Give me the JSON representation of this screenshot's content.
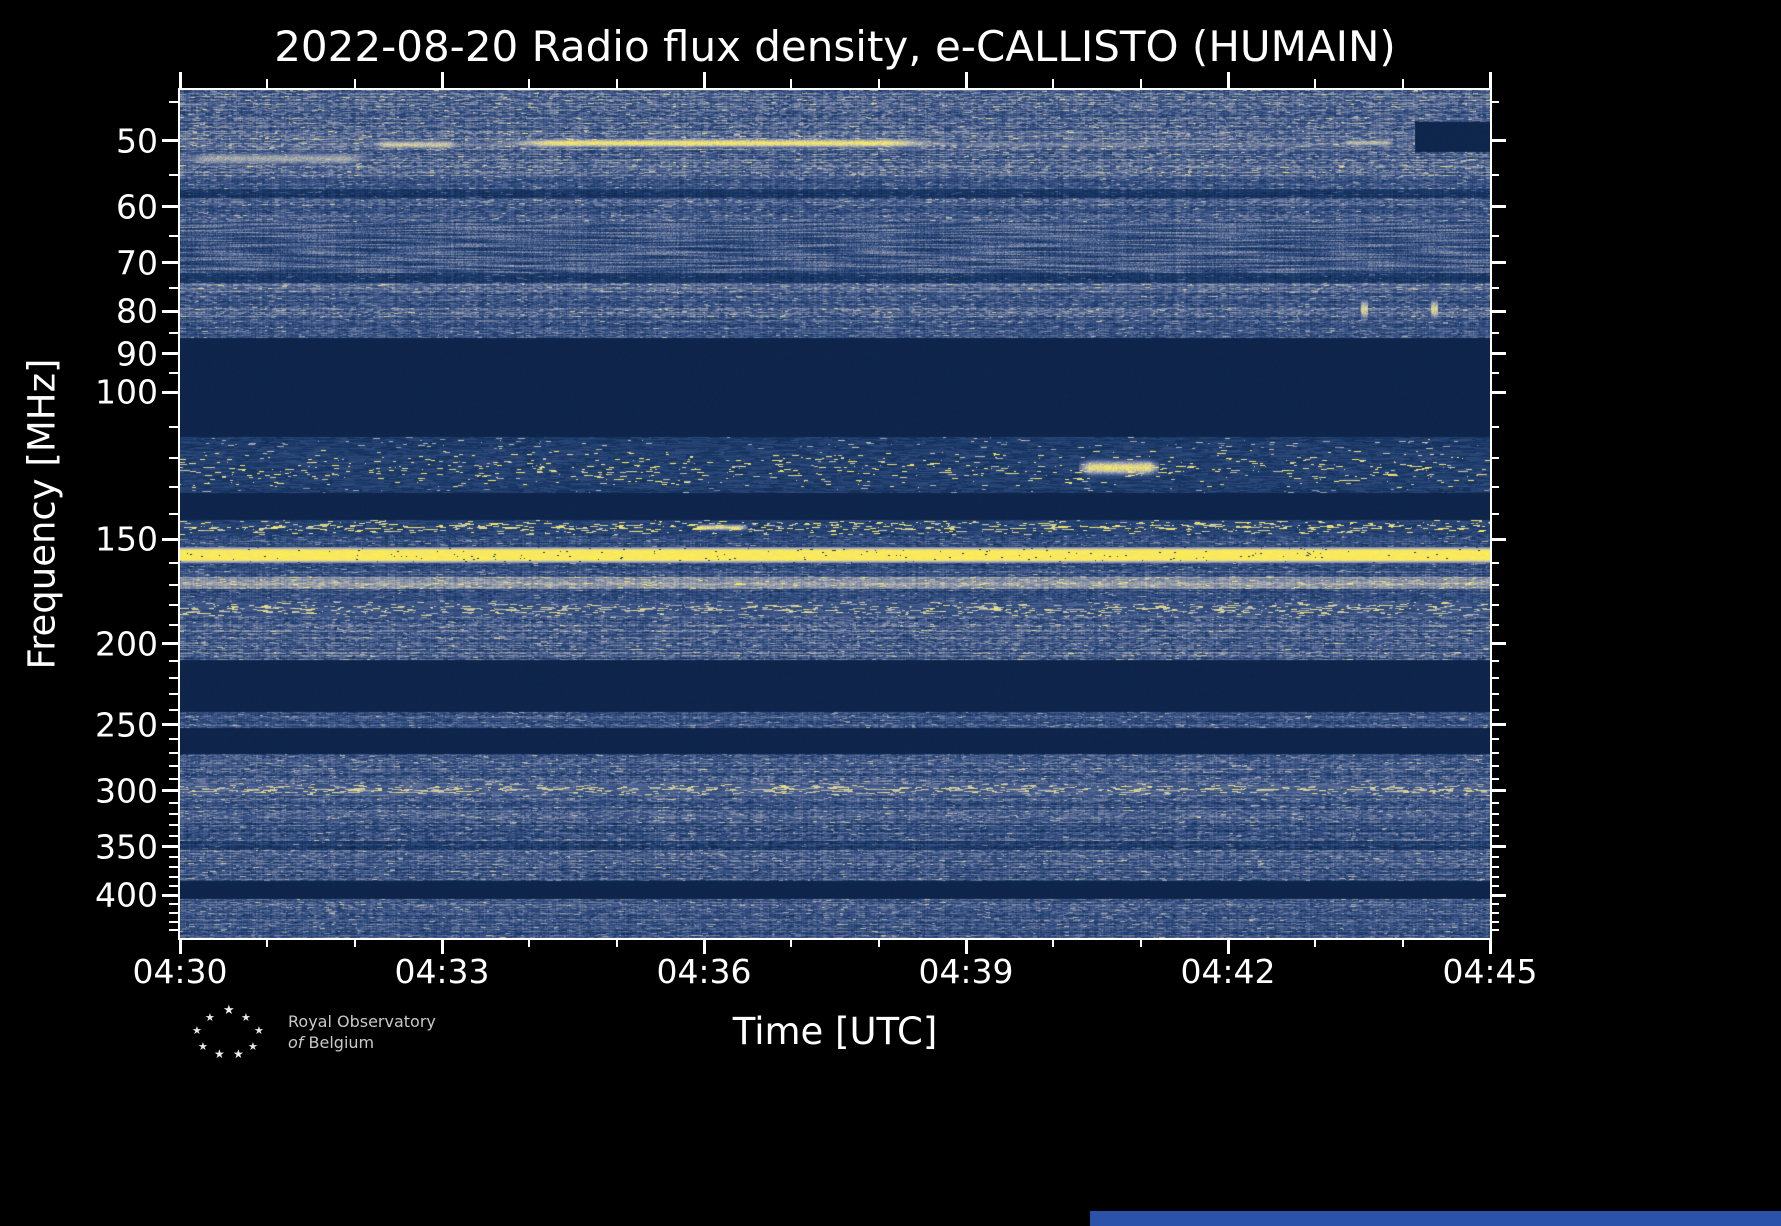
{
  "title": "2022-08-20 Radio flux density, e-CALLISTO (HUMAIN)",
  "axes": {
    "xlabel": "Time [UTC]",
    "ylabel": "Frequency [MHz]",
    "x_tick_labels": [
      "04:30",
      "04:33",
      "04:36",
      "04:39",
      "04:42",
      "04:45"
    ],
    "y_tick_labels": [
      "50",
      "60",
      "70",
      "80",
      "90",
      "100",
      "150",
      "200",
      "250",
      "300",
      "350",
      "400"
    ]
  },
  "branding": {
    "line1": "Royal Observatory",
    "line2_prefix": "of",
    "line2_rest": "Belgium"
  },
  "colors": {
    "background": "#000000",
    "axis": "#ffffff",
    "text": "#ffffff",
    "branding_text": "#c9c9c9",
    "bottom_strip": "#2a52aa"
  },
  "chart_data": {
    "type": "heatmap",
    "title": "2022-08-20 Radio flux density, e-CALLISTO (HUMAIN)",
    "xlabel": "Time [UTC]",
    "ylabel": "Frequency [MHz]",
    "x_ticks_minutes": [
      270,
      273,
      276,
      279,
      282,
      285
    ],
    "x_minor_ticks_minutes": [
      271,
      272,
      274,
      275,
      277,
      278,
      280,
      281,
      283,
      284
    ],
    "y_ticks_mhz": [
      50,
      60,
      70,
      80,
      90,
      100,
      150,
      200,
      250,
      300,
      350,
      400
    ],
    "y_minor_ticks_mhz": [
      45,
      55,
      65,
      75,
      85,
      95,
      110,
      120,
      130,
      140,
      160,
      170,
      180,
      190,
      210,
      220,
      230,
      240,
      260,
      270,
      280,
      290,
      310,
      320,
      330,
      340,
      360,
      370,
      380,
      390,
      410,
      420,
      430,
      440
    ],
    "x_range_minutes": [
      270,
      285
    ],
    "time_start_utc": "04:30",
    "time_end_utc": "04:45",
    "freq_range_mhz": [
      43.5,
      450
    ],
    "y_scale": "log-inverted",
    "grid": false,
    "legend": "none",
    "colormap": {
      "stops": [
        [
          0,
          "#0c2145"
        ],
        [
          0.18,
          "#1b3a69"
        ],
        [
          0.38,
          "#41598b"
        ],
        [
          0.55,
          "#7e89a3"
        ],
        [
          0.72,
          "#b9bab0"
        ],
        [
          0.86,
          "#e9dd82"
        ],
        [
          1,
          "#ffee4f"
        ]
      ]
    },
    "bands": [
      {
        "f": [
          43.5,
          46.5
        ],
        "type": "noise",
        "base": 0.4,
        "amp": 0.3,
        "rowVar": 0.1
      },
      {
        "f": [
          46.5,
          55
        ],
        "type": "noise",
        "base": 0.42,
        "amp": 0.3,
        "rowVar": 0.12
      },
      {
        "f": [
          55,
          57
        ],
        "type": "noise",
        "base": 0.33,
        "amp": 0.22,
        "rowVar": 0.08
      },
      {
        "f": [
          57,
          58.5
        ],
        "type": "noise",
        "base": 0.14,
        "amp": 0.1,
        "rowVar": 0.05
      },
      {
        "f": [
          58.5,
          62.5
        ],
        "type": "noise",
        "base": 0.36,
        "amp": 0.26,
        "rowVar": 0.1
      },
      {
        "f": [
          62.5,
          72
        ],
        "type": "wavy",
        "base": 0.36,
        "amp": 0.26,
        "rowVar": 0.1
      },
      {
        "f": [
          72,
          74
        ],
        "type": "noise",
        "base": 0.16,
        "amp": 0.12,
        "rowVar": 0.05
      },
      {
        "f": [
          74,
          76
        ],
        "type": "noise",
        "base": 0.46,
        "amp": 0.24,
        "rowVar": 0.08
      },
      {
        "f": [
          76,
          79
        ],
        "type": "noise",
        "base": 0.33,
        "amp": 0.24,
        "rowVar": 0.08
      },
      {
        "f": [
          79,
          81.5
        ],
        "type": "noise",
        "base": 0.42,
        "amp": 0.3,
        "rowVar": 0.1
      },
      {
        "f": [
          81.5,
          86
        ],
        "type": "noise",
        "base": 0.33,
        "amp": 0.24,
        "rowVar": 0.08
      },
      {
        "f": [
          86,
          113
        ],
        "type": "blank"
      },
      {
        "f": [
          113,
          117
        ],
        "type": "speckle",
        "base": 0.1,
        "prob": 0.05,
        "hi": 0.75
      },
      {
        "f": [
          117,
          130
        ],
        "type": "speckle",
        "base": 0.12,
        "prob": 0.1,
        "hi": 0.95
      },
      {
        "f": [
          130,
          132
        ],
        "type": "speckle",
        "base": 0.1,
        "prob": 0.04,
        "hi": 0.7
      },
      {
        "f": [
          132,
          142
        ],
        "type": "blank"
      },
      {
        "f": [
          142,
          148
        ],
        "type": "speckle",
        "base": 0.15,
        "prob": 0.24,
        "hi": 0.95
      },
      {
        "f": [
          148,
          153
        ],
        "type": "noise",
        "base": 0.3,
        "amp": 0.22,
        "rowVar": 0.08
      },
      {
        "f": [
          153,
          160
        ],
        "type": "line",
        "base": 0.93
      },
      {
        "f": [
          160,
          166
        ],
        "type": "noise",
        "base": 0.32,
        "amp": 0.22,
        "rowVar": 0.08
      },
      {
        "f": [
          166,
          172
        ],
        "type": "noise",
        "base": 0.6,
        "amp": 0.18,
        "rowVar": 0.08
      },
      {
        "f": [
          172,
          178
        ],
        "type": "noise",
        "base": 0.3,
        "amp": 0.22,
        "rowVar": 0.08
      },
      {
        "f": [
          178,
          185
        ],
        "type": "speckle",
        "base": 0.25,
        "prob": 0.3,
        "hi": 0.85
      },
      {
        "f": [
          185,
          209
        ],
        "type": "noise",
        "base": 0.39,
        "amp": 0.28,
        "rowVar": 0.12
      },
      {
        "f": [
          209,
          241
        ],
        "type": "blank"
      },
      {
        "f": [
          241,
          252
        ],
        "type": "noise",
        "base": 0.33,
        "amp": 0.24,
        "rowVar": 0.1
      },
      {
        "f": [
          252,
          271
        ],
        "type": "blank"
      },
      {
        "f": [
          271,
          294
        ],
        "type": "noise",
        "base": 0.36,
        "amp": 0.26,
        "rowVar": 0.12
      },
      {
        "f": [
          294,
          303
        ],
        "type": "speckle",
        "base": 0.3,
        "prob": 0.35,
        "hi": 0.85
      },
      {
        "f": [
          303,
          344
        ],
        "type": "noise",
        "base": 0.34,
        "amp": 0.26,
        "rowVar": 0.12
      },
      {
        "f": [
          344,
          353
        ],
        "type": "noise",
        "base": 0.22,
        "amp": 0.18,
        "rowVar": 0.08
      },
      {
        "f": [
          353,
          384
        ],
        "type": "noise",
        "base": 0.34,
        "amp": 0.26,
        "rowVar": 0.12
      },
      {
        "f": [
          384,
          404
        ],
        "type": "blank"
      },
      {
        "f": [
          404,
          419
        ],
        "type": "noise",
        "base": 0.36,
        "amp": 0.26,
        "rowVar": 0.1
      },
      {
        "f": [
          419,
          450
        ],
        "type": "noise",
        "base": 0.33,
        "amp": 0.24,
        "rowVar": 0.1
      }
    ],
    "features": [
      {
        "kind": "boost",
        "t": [
          270,
          285
        ],
        "f": [
          49.5,
          51.5
        ],
        "intensity": 0.5
      },
      {
        "kind": "boost",
        "t": [
          270.0,
          272.2
        ],
        "f": [
          51,
          54
        ],
        "intensity": 0.72
      },
      {
        "kind": "boost",
        "t": [
          272.2,
          273.2
        ],
        "f": [
          49.5,
          51.5
        ],
        "intensity": 0.85
      },
      {
        "kind": "boost",
        "t": [
          273.6,
          278.8
        ],
        "f": [
          49.3,
          51.3
        ],
        "intensity": 1.0
      },
      {
        "kind": "boost",
        "t": [
          278.8,
          281.5
        ],
        "f": [
          49.5,
          51.5
        ],
        "intensity": 0.55
      },
      {
        "kind": "boost",
        "t": [
          281.5,
          283.2
        ],
        "f": [
          49.5,
          52
        ],
        "intensity": 0.4
      },
      {
        "kind": "boost",
        "t": [
          283.3,
          283.9
        ],
        "f": [
          49.5,
          51
        ],
        "intensity": 0.8
      },
      {
        "kind": "spike",
        "t": [
          283.52,
          283.6
        ],
        "f": [
          76,
          83
        ],
        "intensity": 0.9
      },
      {
        "kind": "spike",
        "t": [
          284.32,
          284.4
        ],
        "f": [
          76,
          83
        ],
        "intensity": 0.9
      },
      {
        "kind": "boost",
        "t": [
          280.3,
          281.2
        ],
        "f": [
          119,
          127
        ],
        "intensity": 0.95
      },
      {
        "kind": "boost",
        "t": [
          275.9,
          276.5
        ],
        "f": [
          143,
          147
        ],
        "intensity": 0.9
      },
      {
        "kind": "dark",
        "t": [
          284.15,
          285
        ],
        "f": [
          47.5,
          51.5
        ],
        "intensity": 0
      }
    ],
    "description": "e-CALLISTO HUMAIN dynamic radio spectrum. Log frequency axis (about 44-450 MHz, low at top), time 04:30-04:45 UTC. Horizontal RFI bands, blanked frequency ranges (dark navy), a bright continuous RFI line near 155 MHz, speckled aeronautical band near 118-130 MHz, and intermittent bright emission near 50 MHz strongest 04:33.5-04:39 UTC."
  }
}
